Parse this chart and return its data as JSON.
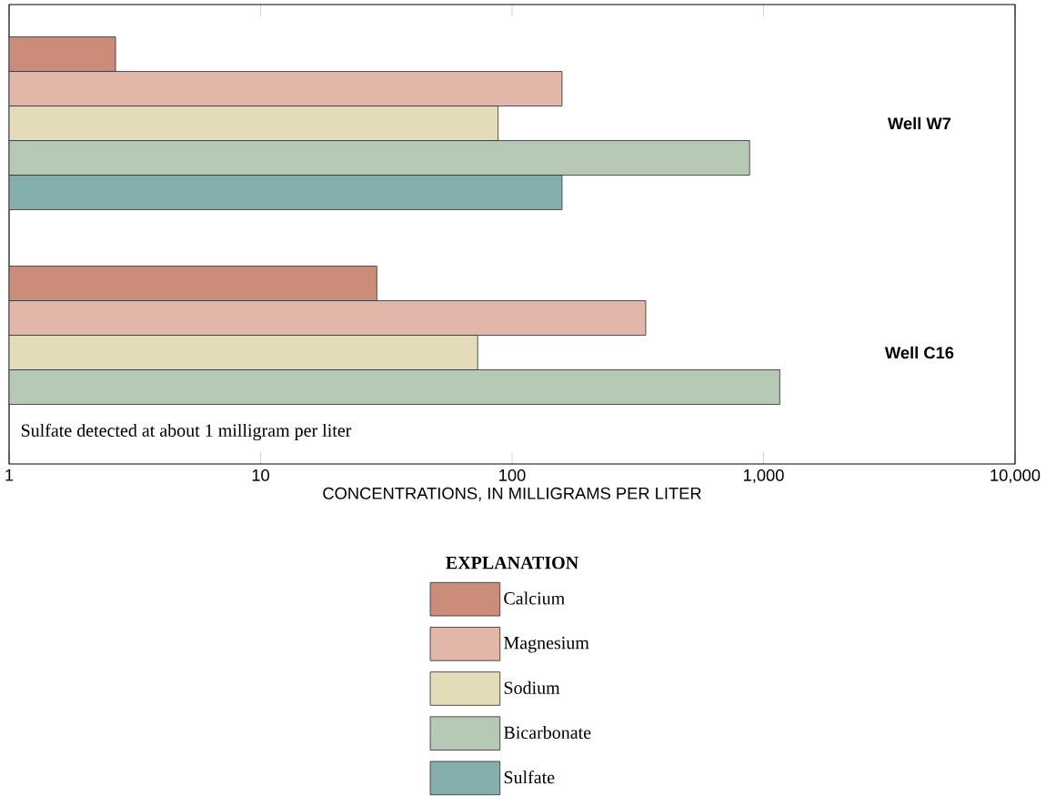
{
  "chart_data": {
    "type": "bar",
    "orientation": "horizontal",
    "log": "x",
    "xlabel": "CONCENTRATIONS, IN MILLIGRAMS PER LITER",
    "legend_title": "EXPLANATION",
    "legend": "bottom",
    "categories": [
      "Well W7",
      "Well C16"
    ],
    "series": [
      {
        "name": "Calcium",
        "color": "#cc8c7a",
        "values": [
          2.65,
          29
        ]
      },
      {
        "name": "Magnesium",
        "color": "#e2b6a8",
        "values": [
          158,
          340
        ]
      },
      {
        "name": "Sodium",
        "color": "#e4dbb8",
        "values": [
          88,
          73
        ]
      },
      {
        "name": "Bicarbonate",
        "color": "#b5c9b5",
        "values": [
          880,
          1160
        ]
      },
      {
        "name": "Sulfate",
        "color": "#84afad",
        "values": [
          158,
          null
        ]
      }
    ],
    "xlim": [
      1,
      10000
    ],
    "xticks": [
      1,
      10,
      100,
      {
        "value": 1000,
        "label": "1,000"
      },
      {
        "value": 10000,
        "label": "10,000"
      }
    ],
    "annotations": [
      "Sulfate detected at about 1 milligram per liter"
    ]
  }
}
